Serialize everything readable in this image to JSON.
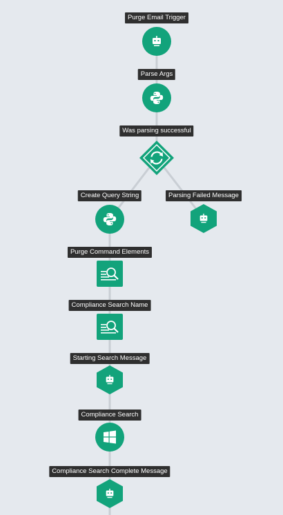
{
  "diagram": {
    "nodes": [
      {
        "id": "purge-email-trigger",
        "label": "Purge Email Trigger",
        "icon": "robot-icon",
        "shape": "circle"
      },
      {
        "id": "parse-args",
        "label": "Parse Args",
        "icon": "python-icon",
        "shape": "circle"
      },
      {
        "id": "was-parsing-successful",
        "label": "Was parsing successful",
        "icon": "condition-icon",
        "shape": "diamond"
      },
      {
        "id": "create-query-string",
        "label": "Create Query String",
        "icon": "python-icon",
        "shape": "circle"
      },
      {
        "id": "parsing-failed-message",
        "label": "Parsing Failed Message",
        "icon": "robot-icon",
        "shape": "hex"
      },
      {
        "id": "purge-command-elements",
        "label": "Purge Command Elements",
        "icon": "search-list-icon",
        "shape": "square"
      },
      {
        "id": "compliance-search-name",
        "label": "Compliance Search Name",
        "icon": "search-list-icon",
        "shape": "square"
      },
      {
        "id": "starting-search-message",
        "label": "Starting Search Message",
        "icon": "robot-icon",
        "shape": "hex"
      },
      {
        "id": "compliance-search",
        "label": "Compliance Search",
        "icon": "windows-icon",
        "shape": "circle"
      },
      {
        "id": "compliance-search-complete-message",
        "label": "Compliance Search Complete Message",
        "icon": "robot-icon",
        "shape": "hex"
      }
    ],
    "edges": [
      {
        "from": "purge-email-trigger",
        "to": "parse-args"
      },
      {
        "from": "parse-args",
        "to": "was-parsing-successful"
      },
      {
        "from": "was-parsing-successful",
        "to": "create-query-string"
      },
      {
        "from": "was-parsing-successful",
        "to": "parsing-failed-message"
      },
      {
        "from": "create-query-string",
        "to": "purge-command-elements"
      },
      {
        "from": "purge-command-elements",
        "to": "compliance-search-name"
      },
      {
        "from": "compliance-search-name",
        "to": "starting-search-message"
      },
      {
        "from": "starting-search-message",
        "to": "compliance-search"
      },
      {
        "from": "compliance-search",
        "to": "compliance-search-complete-message"
      }
    ]
  },
  "colors": {
    "node_fill": "#12a37b",
    "edge": "#c9ced4",
    "label_bg": "#2f2f2f",
    "background": "#e5e9ee"
  }
}
